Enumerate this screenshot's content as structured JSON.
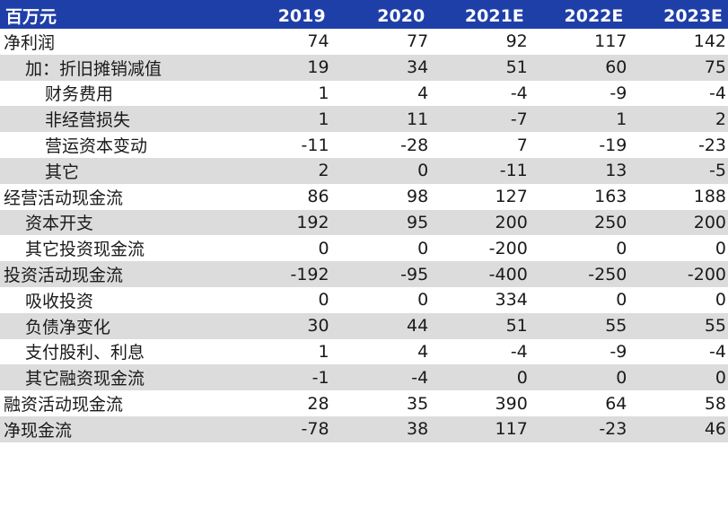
{
  "table": {
    "headers": [
      "百万元",
      "2019",
      "2020",
      "2021E",
      "2022E",
      "2023E"
    ],
    "rows": [
      {
        "label": "净利润",
        "values": [
          "74",
          "77",
          "92",
          "117",
          "142"
        ],
        "indent": 0,
        "shaded": false
      },
      {
        "label": "加：折旧摊销减值",
        "values": [
          "19",
          "34",
          "51",
          "60",
          "75"
        ],
        "indent": 1,
        "shaded": true
      },
      {
        "label": "财务费用",
        "values": [
          "1",
          "4",
          "-4",
          "-9",
          "-4"
        ],
        "indent": 2,
        "shaded": false
      },
      {
        "label": "非经营损失",
        "values": [
          "1",
          "11",
          "-7",
          "1",
          "2"
        ],
        "indent": 2,
        "shaded": true
      },
      {
        "label": "营运资本变动",
        "values": [
          "-11",
          "-28",
          "7",
          "-19",
          "-23"
        ],
        "indent": 2,
        "shaded": false
      },
      {
        "label": "其它",
        "values": [
          "2",
          "0",
          "-11",
          "13",
          "-5"
        ],
        "indent": 2,
        "shaded": true
      },
      {
        "label": "经营活动现金流",
        "values": [
          "86",
          "98",
          "127",
          "163",
          "188"
        ],
        "indent": 0,
        "shaded": false
      },
      {
        "label": "资本开支",
        "values": [
          "192",
          "95",
          "200",
          "250",
          "200"
        ],
        "indent": 1,
        "shaded": true
      },
      {
        "label": "其它投资现金流",
        "values": [
          "0",
          "0",
          "-200",
          "0",
          "0"
        ],
        "indent": 1,
        "shaded": false
      },
      {
        "label": "投资活动现金流",
        "values": [
          "-192",
          "-95",
          "-400",
          "-250",
          "-200"
        ],
        "indent": 0,
        "shaded": true
      },
      {
        "label": "吸收投资",
        "values": [
          "0",
          "0",
          "334",
          "0",
          "0"
        ],
        "indent": 1,
        "shaded": false
      },
      {
        "label": "负债净变化",
        "values": [
          "30",
          "44",
          "51",
          "55",
          "55"
        ],
        "indent": 1,
        "shaded": true
      },
      {
        "label": "支付股利、利息",
        "values": [
          "1",
          "4",
          "-4",
          "-9",
          "-4"
        ],
        "indent": 1,
        "shaded": false
      },
      {
        "label": "其它融资现金流",
        "values": [
          "-1",
          "-4",
          "0",
          "0",
          "0"
        ],
        "indent": 1,
        "shaded": true
      },
      {
        "label": "融资活动现金流",
        "values": [
          "28",
          "35",
          "390",
          "64",
          "58"
        ],
        "indent": 0,
        "shaded": false
      },
      {
        "label": "净现金流",
        "values": [
          "-78",
          "38",
          "117",
          "-23",
          "46"
        ],
        "indent": 0,
        "shaded": true
      }
    ]
  }
}
